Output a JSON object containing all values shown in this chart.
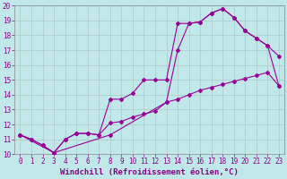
{
  "title": "",
  "xlabel": "Windchill (Refroidissement éolien,°C)",
  "ylabel": "",
  "bg_color": "#c0e8e8",
  "line_color": "#990099",
  "xlim": [
    -0.5,
    23.5
  ],
  "ylim": [
    10,
    20
  ],
  "xticks": [
    0,
    1,
    2,
    3,
    4,
    5,
    6,
    7,
    8,
    9,
    10,
    11,
    12,
    13,
    14,
    15,
    16,
    17,
    18,
    19,
    20,
    21,
    22,
    23
  ],
  "yticks": [
    10,
    11,
    12,
    13,
    14,
    15,
    16,
    17,
    18,
    19,
    20
  ],
  "curve1_x": [
    0,
    1,
    2,
    3,
    4,
    5,
    6,
    7,
    8,
    9,
    10,
    11,
    12,
    13,
    14,
    15,
    16,
    17,
    18,
    19,
    20,
    21,
    22,
    23
  ],
  "curve1_y": [
    11.3,
    11.0,
    10.6,
    10.1,
    11.0,
    11.4,
    11.4,
    11.3,
    12.1,
    12.2,
    12.5,
    12.7,
    12.9,
    13.5,
    13.7,
    14.0,
    14.3,
    14.5,
    14.7,
    14.9,
    15.1,
    15.3,
    15.5,
    14.6
  ],
  "curve2_x": [
    0,
    1,
    2,
    3,
    4,
    5,
    6,
    7,
    8,
    9,
    10,
    11,
    12,
    13,
    14,
    15,
    16,
    17,
    18,
    19,
    20,
    21,
    22,
    23
  ],
  "curve2_y": [
    11.3,
    11.0,
    10.6,
    10.1,
    11.0,
    11.4,
    11.4,
    11.3,
    13.7,
    13.7,
    14.1,
    15.0,
    15.0,
    15.0,
    18.8,
    18.8,
    18.9,
    19.5,
    19.8,
    19.2,
    18.3,
    17.8,
    17.3,
    16.6
  ],
  "curve3_x": [
    0,
    3,
    8,
    13,
    14,
    15,
    16,
    17,
    18,
    19,
    20,
    21,
    22,
    23
  ],
  "curve3_y": [
    11.3,
    10.1,
    11.3,
    13.5,
    17.0,
    18.8,
    18.9,
    19.5,
    19.8,
    19.2,
    18.3,
    17.8,
    17.3,
    14.6
  ],
  "grid_color": "#b0c8c8",
  "font_color": "#880088",
  "tick_fontsize": 5.5,
  "xlabel_fontsize": 6.5,
  "marker": "D",
  "marker_size": 2,
  "line_width": 0.8
}
